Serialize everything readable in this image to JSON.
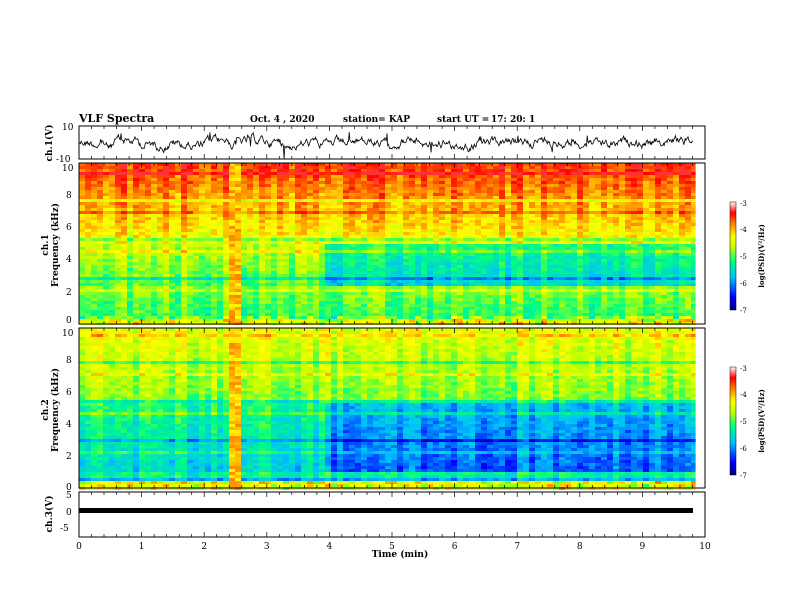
{
  "header": {
    "title": "VLF Spectra",
    "date": "Oct. 4 , 2020",
    "station": "station= KAP",
    "start_label": "start UT =",
    "start_time": "17: 20: 1"
  },
  "colors": {
    "spectrogram_scale": [
      "#000080",
      "#0000ff",
      "#00bfff",
      "#00ff80",
      "#c0ff00",
      "#ffff00",
      "#ff8000",
      "#ff0000",
      "#ffffff"
    ]
  },
  "chart_data": [
    {
      "type": "line",
      "name": "ch1-waveform",
      "ylabel": "ch.1(V)",
      "ylim": [
        -10,
        10
      ],
      "yticks": [
        "10",
        "-10"
      ],
      "xlim": [
        0,
        10
      ],
      "series_color": "#000000"
    },
    {
      "type": "heatmap",
      "name": "ch1-spectrogram",
      "ylabel_top": "ch.1",
      "ylabel": "Frequency (kHz)",
      "ylim": [
        0,
        10
      ],
      "yticks": [
        "0",
        "2",
        "4",
        "6",
        "8",
        "10"
      ],
      "xlim": [
        0,
        9.85
      ],
      "colorbar": {
        "label": "log(PSD)(V²/Hz)",
        "range": [
          -7,
          -3
        ],
        "ticks": [
          "-3",
          "-4",
          "-5",
          "-6",
          "-7"
        ]
      },
      "features": [
        {
          "kind": "broadband-burst",
          "t_start": 2.4,
          "t_end": 2.55
        },
        {
          "kind": "quiet-period-start",
          "t": 3.9
        }
      ]
    },
    {
      "type": "heatmap",
      "name": "ch2-spectrogram",
      "ylabel_top": "ch.2",
      "ylabel": "Frequency (kHz)",
      "ylim": [
        0,
        10
      ],
      "yticks": [
        "0",
        "2",
        "4",
        "6",
        "8",
        "10"
      ],
      "xlim": [
        0,
        9.85
      ],
      "colorbar": {
        "label": "log(PSD)(V²/Hz)",
        "range": [
          -7,
          -3
        ],
        "ticks": [
          "-3",
          "-4",
          "-5",
          "-6",
          "-7"
        ]
      },
      "features": [
        {
          "kind": "broadband-burst",
          "t_start": 2.4,
          "t_end": 2.55
        },
        {
          "kind": "quiet-period-start",
          "t": 3.9
        }
      ]
    },
    {
      "type": "line",
      "name": "ch3-waveform",
      "ylabel": "ch.3(V)",
      "ylim": [
        -5,
        5
      ],
      "yticks": [
        "5",
        "0",
        "-5"
      ],
      "xlim": [
        0,
        10
      ],
      "level": 0,
      "series_color": "#000000"
    }
  ],
  "xaxis": {
    "label": "Time (min)",
    "ticks": [
      "0",
      "1",
      "2",
      "3",
      "4",
      "5",
      "6",
      "7",
      "8",
      "9",
      "10"
    ],
    "range": [
      0,
      10
    ]
  }
}
